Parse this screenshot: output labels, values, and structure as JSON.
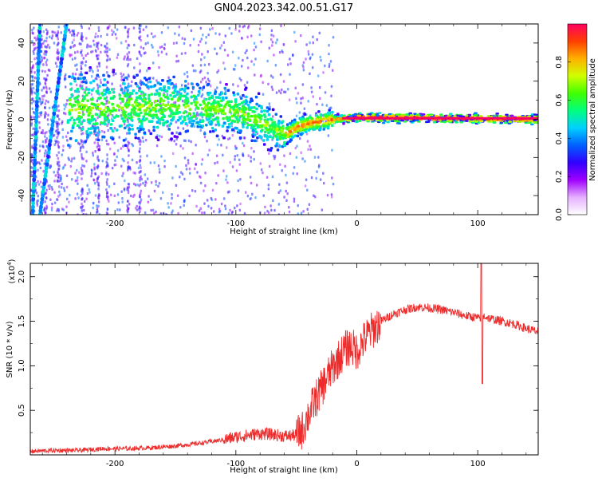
{
  "page": {
    "title": "GN04.2023.342.00.51.G17"
  },
  "chart_data": [
    {
      "type": "heatmap",
      "xlabel": "Height of straight line (km)",
      "ylabel": "Frequency (Hz)",
      "xlim": [
        -270,
        150
      ],
      "ylim": [
        -50,
        50
      ],
      "x_ticks": [
        -200,
        -100,
        0,
        100
      ],
      "y_ticks": [
        -40,
        -20,
        0,
        20,
        40
      ],
      "grid": false,
      "colorbar": {
        "label": "Normalized spectral amplitude",
        "range": [
          0,
          1
        ],
        "ticks": [
          "0.0",
          "0.2",
          "0.4",
          "0.6",
          "0.8"
        ],
        "colors": [
          "#ffffff",
          "#e5b0ff",
          "#a000ff",
          "#3000ff",
          "#0060ff",
          "#00d0ff",
          "#00ff80",
          "#40ff00",
          "#d0ff00",
          "#ffb000",
          "#ff4000",
          "#ff0060"
        ]
      },
      "ridge": [
        {
          "x": -200,
          "y": 6
        },
        {
          "x": -150,
          "y": 7
        },
        {
          "x": -110,
          "y": 5
        },
        {
          "x": -90,
          "y": 2
        },
        {
          "x": -70,
          "y": -5
        },
        {
          "x": -60,
          "y": -8
        },
        {
          "x": -50,
          "y": -4
        },
        {
          "x": -40,
          "y": -2
        },
        {
          "x": -20,
          "y": 0
        },
        {
          "x": 0,
          "y": 1
        },
        {
          "x": 150,
          "y": 0
        }
      ]
    },
    {
      "type": "line",
      "xlabel": "Height of straight line (km)",
      "ylabel": "SNR (10 * v/v)",
      "y_exponent_label": "(x10",
      "y_exponent_power": "4",
      "y_exponent_close": ")",
      "xlim": [
        -270,
        150
      ],
      "ylim": [
        0,
        2.15
      ],
      "x_ticks": [
        -200,
        -100,
        0,
        100
      ],
      "y_ticks": [
        "0.5",
        "1.0",
        "1.5",
        "2.0"
      ],
      "grid": false,
      "series": [
        {
          "color": "#ee2b2b",
          "x": [
            -270,
            -250,
            -230,
            -210,
            -190,
            -170,
            -150,
            -130,
            -110,
            -100,
            -90,
            -80,
            -70,
            -60,
            -50,
            -45,
            -40,
            -35,
            -30,
            -25,
            -20,
            -15,
            -10,
            -5,
            0,
            5,
            10,
            15,
            20,
            25,
            30,
            40,
            50,
            60,
            70,
            80,
            90,
            100,
            103,
            105,
            110,
            120,
            130,
            140,
            150
          ],
          "y": [
            0.04,
            0.05,
            0.05,
            0.07,
            0.07,
            0.08,
            0.1,
            0.13,
            0.17,
            0.2,
            0.22,
            0.24,
            0.23,
            0.21,
            0.22,
            0.28,
            0.45,
            0.6,
            0.72,
            0.86,
            0.98,
            1.08,
            1.18,
            1.22,
            1.16,
            1.27,
            1.36,
            1.43,
            1.5,
            1.54,
            1.58,
            1.63,
            1.66,
            1.65,
            1.63,
            1.6,
            1.56,
            1.54,
            1.5,
            1.56,
            1.53,
            1.5,
            1.47,
            1.42,
            1.38
          ]
        }
      ],
      "spikes": [
        {
          "x": 103,
          "y": 2.15
        },
        {
          "x": 103,
          "y": 0.8
        }
      ]
    }
  ]
}
